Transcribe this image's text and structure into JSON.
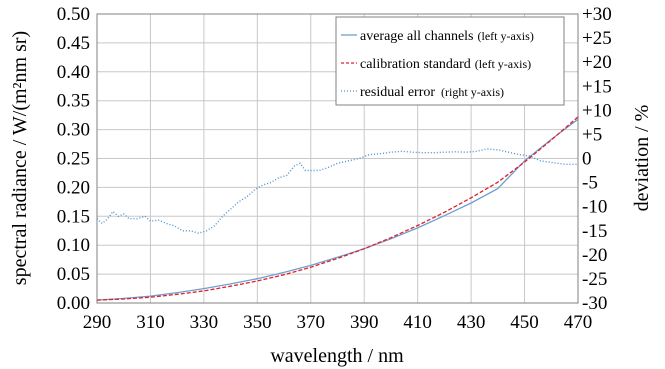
{
  "chart_data": {
    "type": "line",
    "title": "",
    "xlabel": "wavelength / nm",
    "ylabel_left": "spectral radiance / W/(m²nm sr)",
    "ylabel_right": "deviation / %",
    "xlim": [
      290,
      470
    ],
    "ylim_left": [
      0,
      0.5
    ],
    "ylim_right": [
      -30,
      30
    ],
    "x_ticks": [
      "290",
      "310",
      "330",
      "350",
      "370",
      "390",
      "410",
      "430",
      "450",
      "470"
    ],
    "y_left_ticks": [
      "0.00",
      "0.05",
      "0.10",
      "0.15",
      "0.20",
      "0.25",
      "0.30",
      "0.35",
      "0.40",
      "0.45",
      "0.50"
    ],
    "y_right_ticks": [
      "-30",
      "-25",
      "-20",
      "-15",
      "-10",
      "-5",
      "0",
      "+5",
      "+10",
      "+15",
      "+20",
      "+25",
      "+30"
    ],
    "grid": true,
    "legend_position": "top-right",
    "series": [
      {
        "name": "average all channels",
        "axis_note": "(left y-axis)",
        "axis": "left",
        "style": "solid",
        "color": "#6f9fd0",
        "x": [
          290,
          300,
          310,
          320,
          330,
          340,
          350,
          360,
          370,
          380,
          390,
          400,
          410,
          420,
          430,
          440,
          450,
          460,
          470
        ],
        "y": [
          0.005,
          0.008,
          0.012,
          0.018,
          0.025,
          0.033,
          0.042,
          0.053,
          0.065,
          0.079,
          0.094,
          0.111,
          0.13,
          0.151,
          0.173,
          0.198,
          0.246,
          0.283,
          0.318
        ]
      },
      {
        "name": "calibration standard",
        "axis_note": "(left y-axis)",
        "axis": "left",
        "style": "dashed",
        "color": "#e0202a",
        "x": [
          290,
          300,
          310,
          320,
          330,
          340,
          350,
          360,
          370,
          380,
          390,
          400,
          410,
          420,
          430,
          440,
          450,
          460,
          470
        ],
        "y": [
          0.005,
          0.007,
          0.01,
          0.015,
          0.021,
          0.029,
          0.038,
          0.049,
          0.062,
          0.077,
          0.094,
          0.113,
          0.134,
          0.157,
          0.182,
          0.209,
          0.244,
          0.282,
          0.322
        ]
      },
      {
        "name": "residual error",
        "axis_note": "(right y-axis)",
        "axis": "right",
        "style": "dotted",
        "color": "#4a90d0",
        "x": [
          290,
          292,
          294,
          296,
          298,
          300,
          302,
          305,
          308,
          310,
          313,
          316,
          319,
          322,
          325,
          328,
          331,
          334,
          337,
          340,
          343,
          346,
          349,
          352,
          355,
          358,
          361,
          364,
          366,
          368,
          370,
          373,
          376,
          380,
          384,
          388,
          392,
          396,
          400,
          404,
          408,
          412,
          416,
          420,
          424,
          428,
          432,
          436,
          440,
          444,
          448,
          452,
          456,
          460,
          465,
          470
        ],
        "y": [
          -12.5,
          -13.5,
          -12.5,
          -11,
          -12,
          -11.5,
          -12.5,
          -12.5,
          -12,
          -13,
          -12.8,
          -13.5,
          -14,
          -15,
          -15,
          -15.5,
          -15,
          -14,
          -12,
          -10.5,
          -9,
          -8,
          -6.5,
          -5.5,
          -5,
          -4,
          -3.5,
          -1.5,
          -1,
          -2.5,
          -2.5,
          -2.5,
          -2,
          -1,
          -0.5,
          0,
          0.8,
          1,
          1.3,
          1.5,
          1.3,
          1.2,
          1.2,
          1.3,
          1.4,
          1.3,
          1.5,
          2,
          1.8,
          1.3,
          0.8,
          0.5,
          -0.5,
          -0.8,
          -1.2,
          -1.2
        ]
      }
    ]
  }
}
